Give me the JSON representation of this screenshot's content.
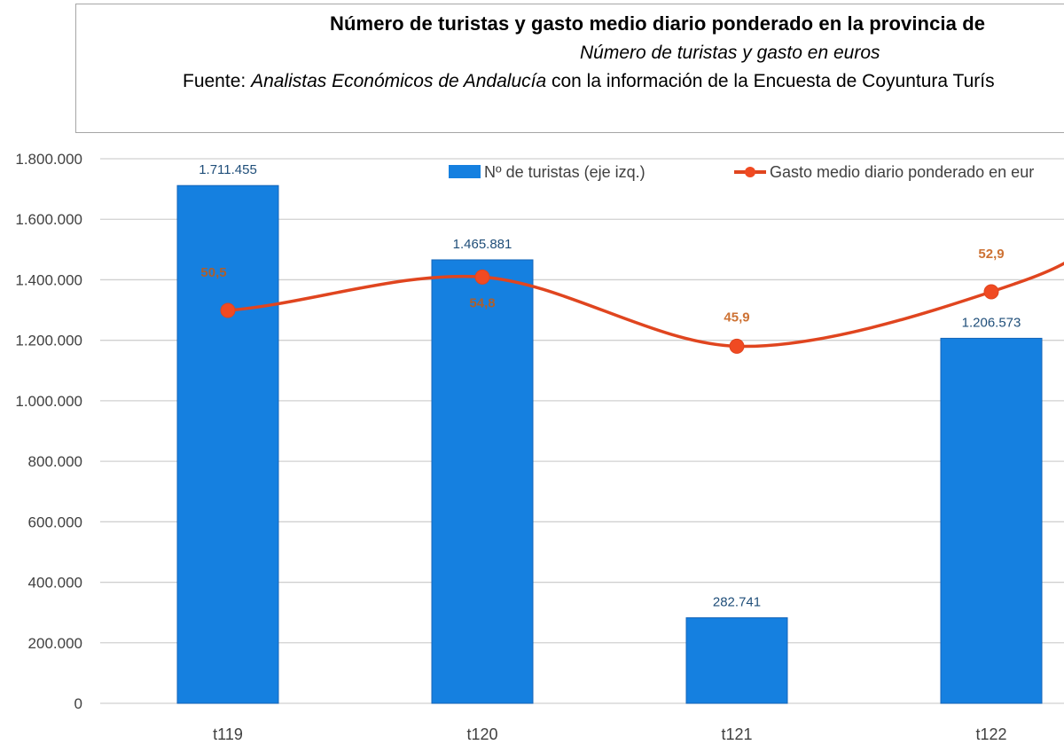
{
  "header": {
    "title": "Número de turistas y gasto medio diario ponderado en la provincia de",
    "subtitle": "Número de turistas y gasto en euros",
    "source_prefix": "Fuente: ",
    "source_italic": "Analistas Económicos de Andalucía",
    "source_rest": " con la información de la Encuesta de Coyuntura Turís"
  },
  "colors": {
    "bar": "#1580e0",
    "bar_border": "#1565b8",
    "line": "#e0451f",
    "grid": "#d0d0d0"
  },
  "chart_data": {
    "type": "bar+line",
    "title": "Número de turistas y gasto medio diario ponderado en la provincia de",
    "categories": [
      "t119",
      "t120",
      "t121",
      "t122"
    ],
    "series": [
      {
        "name": "Nº de turistas (eje izq.)",
        "type": "bar",
        "axis": "left",
        "values": [
          1711455,
          1465881,
          282741,
          1206573
        ],
        "labels": [
          "1.711.455",
          "1.465.881",
          "282.741",
          "1.206.573"
        ]
      },
      {
        "name": "Gasto medio diario  ponderado en eur",
        "type": "line",
        "axis": "right",
        "values": [
          50.5,
          54.8,
          45.9,
          52.9
        ],
        "labels": [
          "50,5",
          "54,8",
          "45,9",
          "52,9"
        ]
      }
    ],
    "ylim": [
      0,
      1800000
    ],
    "ylim_right": [
      0,
      70
    ],
    "yticks": [
      "0",
      "200.000",
      "400.000",
      "600.000",
      "800.000",
      "1.000.000",
      "1.200.000",
      "1.400.000",
      "1.600.000",
      "1.800.000"
    ],
    "ytick_values": [
      0,
      200000,
      400000,
      600000,
      800000,
      1000000,
      1200000,
      1400000,
      1600000,
      1800000
    ],
    "grid": true,
    "legend_position": "top"
  }
}
